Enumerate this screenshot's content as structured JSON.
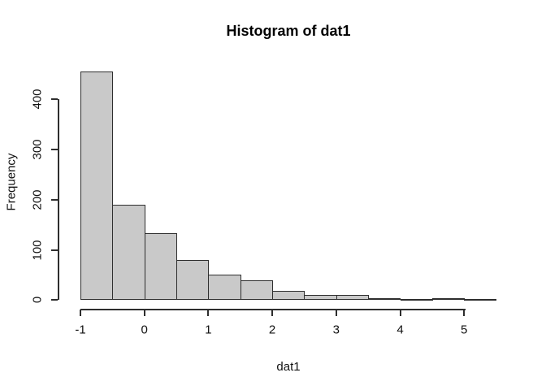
{
  "chart_data": {
    "type": "bar",
    "subtype": "histogram",
    "title": "Histogram of dat1",
    "xlabel": "dat1",
    "ylabel": "Frequency",
    "bin_width": 0.5,
    "bin_edges": [
      -1,
      -0.5,
      0,
      0.5,
      1,
      1.5,
      2,
      2.5,
      3,
      3.5,
      4,
      4.5,
      5,
      5.5
    ],
    "counts": [
      455,
      190,
      133,
      80,
      50,
      40,
      18,
      10,
      10,
      4,
      1,
      3,
      1
    ],
    "x_ticks": [
      -1,
      0,
      1,
      2,
      3,
      4,
      5
    ],
    "x_tick_labels": [
      "-1",
      "0",
      "1",
      "2",
      "3",
      "4",
      "5"
    ],
    "y_ticks": [
      0,
      100,
      200,
      300,
      400
    ],
    "y_tick_labels": [
      "0",
      "100",
      "200",
      "300",
      "400"
    ],
    "xlim": [
      -1,
      5.5
    ],
    "ylim": [
      0,
      460
    ],
    "grid": false,
    "legend": false,
    "bar_fill": "#c9c9c9",
    "bar_border": "#2e2e2e",
    "axis_color": "#2e2e2e",
    "text_color": "#111111",
    "background": "#ffffff"
  }
}
